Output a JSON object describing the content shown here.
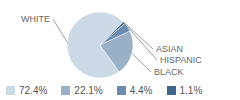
{
  "chart_data": {
    "type": "pie",
    "categories": [
      "WHITE",
      "BLACK",
      "HISPANIC",
      "ASIAN"
    ],
    "values": [
      72.4,
      22.1,
      4.4,
      1.1
    ],
    "value_labels": [
      "72.4%",
      "22.1%",
      "4.4%",
      "1.1%"
    ],
    "colors": [
      "#ccd9e6",
      "#9ab0c6",
      "#6b8cae",
      "#3f668c"
    ],
    "legend": "bottom"
  }
}
